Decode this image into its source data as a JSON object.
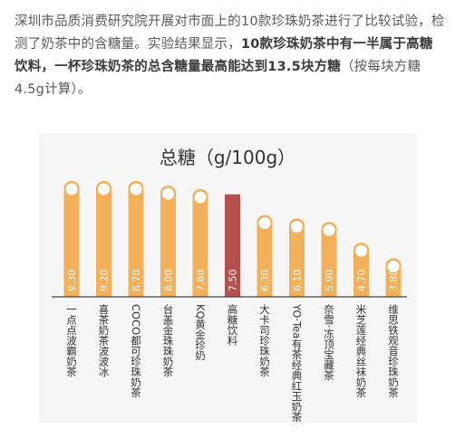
{
  "article": {
    "part1": "深圳市品质消费研究院开展对市面上的10款珍珠奶茶进行了比较试验，检测了奶茶中的含糖量。实验结果显示，",
    "part2": "10款珍珠奶茶中有一半属于高糖饮料，一杯珍珠奶茶的总含糖量最高能达到13.5块方糖",
    "part3": "（按每块方糖4.5g计算）。"
  },
  "colors": {
    "bar": "#f2b05a",
    "bar_highlight": "#b5514c",
    "circle": "#ffffff",
    "value_text": "#ffffff",
    "axis": "#444444",
    "title_text": "#333333",
    "label_text": "#333333",
    "background": "#f6f6f6"
  },
  "chart_data": {
    "type": "bar",
    "title": "总糖（g/100g）",
    "categories": [
      "一点点 波霸奶茶",
      "喜茶 奶茶波波冰",
      "COCO都可 珍珠奶茶",
      "台盖 金珠珠奶茶",
      "KQ 黄金珍奶",
      "高糖饮料",
      "大卡司 珍珠奶茶",
      "YO·Tea有茶 经典红玉奶茶",
      "奈雪·冻顶宝藏茶",
      "米芝莲 经典丝袜奶茶",
      "维思 铁观音珍珠奶茶"
    ],
    "values": [
      9.3,
      9.2,
      8.7,
      8.0,
      7.8,
      7.5,
      6.3,
      6.1,
      5.9,
      4.7,
      3.8
    ],
    "value_labels": [
      "9.30",
      "9.20",
      "8.70",
      "8.00",
      "7.80",
      "7.50",
      "6.30",
      "6.10",
      "5.90",
      "4.70",
      "3.80"
    ],
    "highlight_index": 5,
    "ylim": [
      0,
      10
    ],
    "grid": false,
    "legend": "none"
  }
}
